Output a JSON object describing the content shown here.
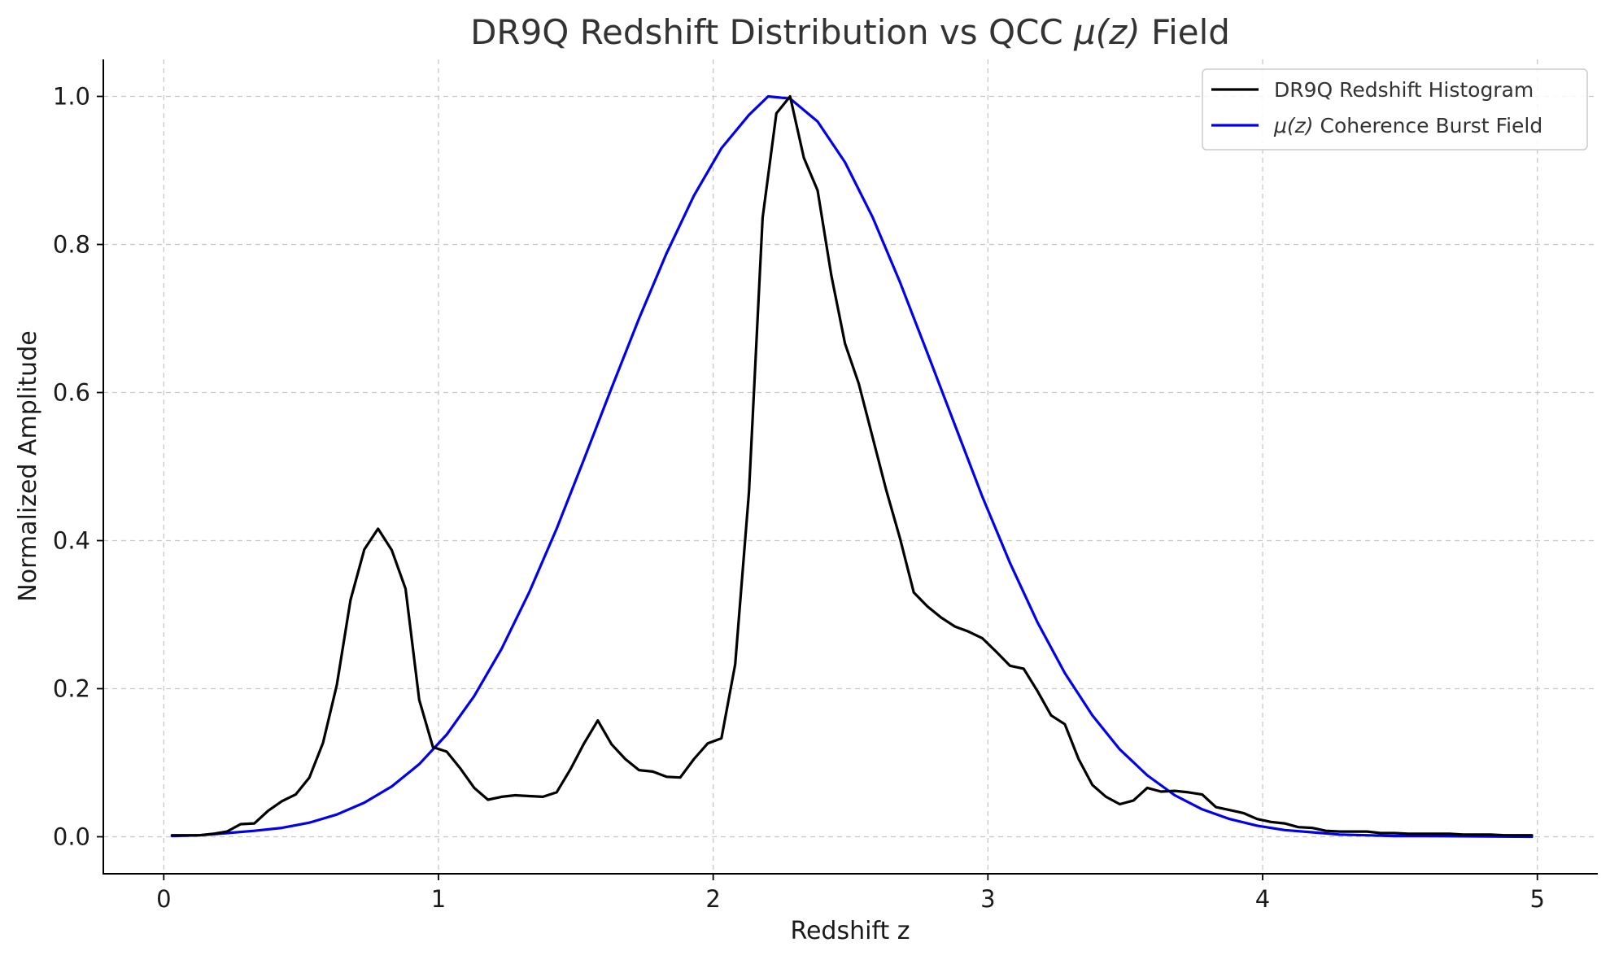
{
  "chart_data": {
    "type": "line",
    "title_prefix": "DR9Q Redshift Distribution vs QCC ",
    "title_math": "μ(z)",
    "title_suffix": " Field",
    "xlabel": "Redshift z",
    "ylabel": "Normalized Amplitude",
    "xlim": [
      -0.22,
      5.22
    ],
    "ylim": [
      -0.05,
      1.05
    ],
    "xticks": [
      0,
      1,
      2,
      3,
      4,
      5
    ],
    "xtick_labels": [
      "0",
      "1",
      "2",
      "3",
      "4",
      "5"
    ],
    "yticks": [
      0.0,
      0.2,
      0.4,
      0.6,
      0.8,
      1.0
    ],
    "ytick_labels": [
      "0.0",
      "0.2",
      "0.4",
      "0.6",
      "0.8",
      "1.0"
    ],
    "grid": true,
    "legend_position": "top-right",
    "series": [
      {
        "name": "DR9Q Redshift Histogram",
        "color": "#000000",
        "points": [
          [
            0.03,
            0.002
          ],
          [
            0.08,
            0.002
          ],
          [
            0.13,
            0.002
          ],
          [
            0.18,
            0.004
          ],
          [
            0.23,
            0.007
          ],
          [
            0.28,
            0.017
          ],
          [
            0.33,
            0.018
          ],
          [
            0.38,
            0.035
          ],
          [
            0.43,
            0.048
          ],
          [
            0.48,
            0.057
          ],
          [
            0.53,
            0.08
          ],
          [
            0.58,
            0.127
          ],
          [
            0.63,
            0.205
          ],
          [
            0.68,
            0.32
          ],
          [
            0.73,
            0.388
          ],
          [
            0.78,
            0.416
          ],
          [
            0.83,
            0.387
          ],
          [
            0.88,
            0.335
          ],
          [
            0.93,
            0.185
          ],
          [
            0.98,
            0.121
          ],
          [
            1.03,
            0.115
          ],
          [
            1.08,
            0.092
          ],
          [
            1.13,
            0.066
          ],
          [
            1.18,
            0.05
          ],
          [
            1.23,
            0.054
          ],
          [
            1.28,
            0.056
          ],
          [
            1.33,
            0.055
          ],
          [
            1.38,
            0.054
          ],
          [
            1.43,
            0.06
          ],
          [
            1.48,
            0.091
          ],
          [
            1.53,
            0.126
          ],
          [
            1.58,
            0.157
          ],
          [
            1.63,
            0.125
          ],
          [
            1.68,
            0.105
          ],
          [
            1.73,
            0.09
          ],
          [
            1.78,
            0.088
          ],
          [
            1.83,
            0.081
          ],
          [
            1.88,
            0.08
          ],
          [
            1.93,
            0.105
          ],
          [
            1.98,
            0.126
          ],
          [
            2.03,
            0.133
          ],
          [
            2.08,
            0.233
          ],
          [
            2.13,
            0.465
          ],
          [
            2.18,
            0.836
          ],
          [
            2.23,
            0.977
          ],
          [
            2.28,
            1.0
          ],
          [
            2.33,
            0.917
          ],
          [
            2.38,
            0.873
          ],
          [
            2.43,
            0.758
          ],
          [
            2.48,
            0.666
          ],
          [
            2.53,
            0.612
          ],
          [
            2.58,
            0.54
          ],
          [
            2.63,
            0.468
          ],
          [
            2.68,
            0.403
          ],
          [
            2.73,
            0.33
          ],
          [
            2.78,
            0.311
          ],
          [
            2.83,
            0.296
          ],
          [
            2.88,
            0.284
          ],
          [
            2.93,
            0.277
          ],
          [
            2.98,
            0.268
          ],
          [
            3.03,
            0.25
          ],
          [
            3.08,
            0.231
          ],
          [
            3.13,
            0.227
          ],
          [
            3.18,
            0.197
          ],
          [
            3.23,
            0.164
          ],
          [
            3.28,
            0.152
          ],
          [
            3.33,
            0.105
          ],
          [
            3.38,
            0.07
          ],
          [
            3.43,
            0.054
          ],
          [
            3.48,
            0.044
          ],
          [
            3.53,
            0.049
          ],
          [
            3.58,
            0.066
          ],
          [
            3.63,
            0.061
          ],
          [
            3.68,
            0.062
          ],
          [
            3.73,
            0.06
          ],
          [
            3.78,
            0.057
          ],
          [
            3.83,
            0.04
          ],
          [
            3.88,
            0.036
          ],
          [
            3.93,
            0.032
          ],
          [
            3.98,
            0.024
          ],
          [
            4.03,
            0.02
          ],
          [
            4.08,
            0.018
          ],
          [
            4.13,
            0.013
          ],
          [
            4.18,
            0.012
          ],
          [
            4.23,
            0.008
          ],
          [
            4.28,
            0.007
          ],
          [
            4.33,
            0.007
          ],
          [
            4.38,
            0.007
          ],
          [
            4.43,
            0.005
          ],
          [
            4.48,
            0.005
          ],
          [
            4.53,
            0.004
          ],
          [
            4.58,
            0.004
          ],
          [
            4.63,
            0.004
          ],
          [
            4.68,
            0.004
          ],
          [
            4.73,
            0.003
          ],
          [
            4.78,
            0.003
          ],
          [
            4.83,
            0.003
          ],
          [
            4.88,
            0.002
          ],
          [
            4.93,
            0.002
          ],
          [
            4.98,
            0.002
          ]
        ]
      },
      {
        "name_math": "μ(z)",
        "name_suffix": " Coherence Burst Field",
        "color": "#0000ee",
        "points": [
          [
            0.03,
            0.001
          ],
          [
            0.13,
            0.002
          ],
          [
            0.23,
            0.005
          ],
          [
            0.33,
            0.008
          ],
          [
            0.43,
            0.012
          ],
          [
            0.53,
            0.019
          ],
          [
            0.63,
            0.03
          ],
          [
            0.73,
            0.046
          ],
          [
            0.83,
            0.068
          ],
          [
            0.93,
            0.098
          ],
          [
            1.03,
            0.138
          ],
          [
            1.13,
            0.19
          ],
          [
            1.23,
            0.254
          ],
          [
            1.33,
            0.33
          ],
          [
            1.43,
            0.416
          ],
          [
            1.53,
            0.51
          ],
          [
            1.63,
            0.606
          ],
          [
            1.73,
            0.7
          ],
          [
            1.83,
            0.788
          ],
          [
            1.93,
            0.866
          ],
          [
            2.03,
            0.93
          ],
          [
            2.13,
            0.975
          ],
          [
            2.2,
            1.0
          ],
          [
            2.28,
            0.997
          ],
          [
            2.38,
            0.966
          ],
          [
            2.48,
            0.911
          ],
          [
            2.58,
            0.837
          ],
          [
            2.68,
            0.749
          ],
          [
            2.78,
            0.653
          ],
          [
            2.88,
            0.556
          ],
          [
            2.98,
            0.459
          ],
          [
            3.08,
            0.37
          ],
          [
            3.18,
            0.29
          ],
          [
            3.28,
            0.221
          ],
          [
            3.38,
            0.164
          ],
          [
            3.48,
            0.118
          ],
          [
            3.58,
            0.083
          ],
          [
            3.68,
            0.056
          ],
          [
            3.78,
            0.037
          ],
          [
            3.88,
            0.024
          ],
          [
            3.98,
            0.015
          ],
          [
            4.08,
            0.009
          ],
          [
            4.18,
            0.006
          ],
          [
            4.28,
            0.003
          ],
          [
            4.38,
            0.002
          ],
          [
            4.48,
            0.001
          ],
          [
            4.58,
            0.001
          ],
          [
            4.98,
            0.0
          ]
        ]
      }
    ]
  }
}
